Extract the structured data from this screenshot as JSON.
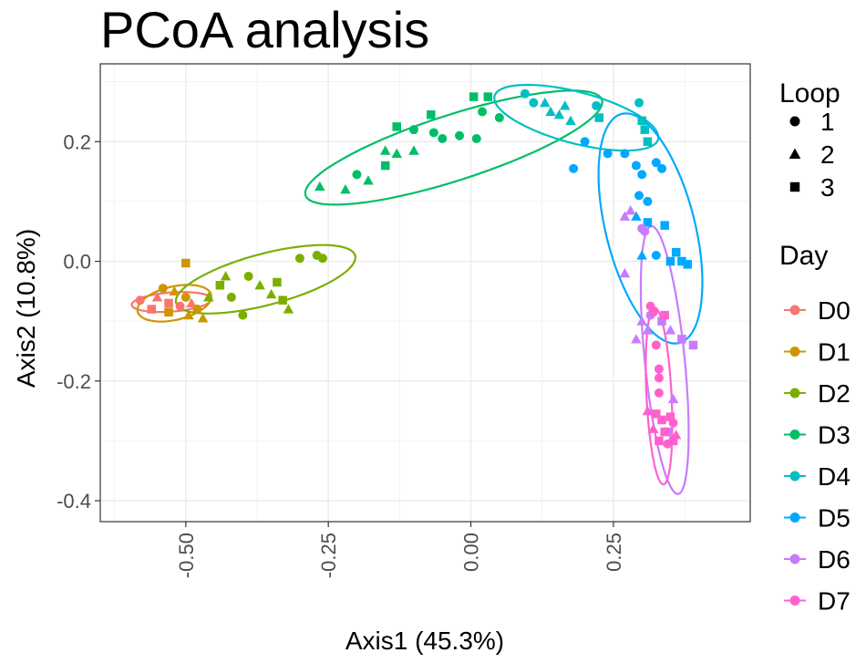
{
  "chart_data": {
    "type": "scatter",
    "title": "PCoA analysis",
    "xlabel": "Axis1 (45.3%)",
    "ylabel": "Axis2 (10.8%)",
    "xlim": [
      -0.65,
      0.49
    ],
    "ylim": [
      -0.435,
      0.33
    ],
    "xticks": [
      {
        "value": -0.5,
        "label": "-0.50"
      },
      {
        "value": -0.25,
        "label": "-0.25"
      },
      {
        "value": 0,
        "label": "0.00"
      },
      {
        "value": 0.25,
        "label": "0.25"
      }
    ],
    "yticks": [
      {
        "value": -0.4,
        "label": "-0.4"
      },
      {
        "value": -0.2,
        "label": "-0.2"
      },
      {
        "value": 0,
        "label": "0.0"
      },
      {
        "value": 0.2,
        "label": "0.2"
      }
    ],
    "grid": true,
    "legend": {
      "shape_title": "Loop",
      "shape_entries": [
        {
          "label": "1",
          "shape": "circle"
        },
        {
          "label": "2",
          "shape": "triangle"
        },
        {
          "label": "3",
          "shape": "square"
        }
      ],
      "color_title": "Day",
      "position": "right"
    },
    "groups": [
      {
        "name": "D0",
        "color": "#F8766D",
        "ellipse": {
          "cx": -0.525,
          "cy": -0.068,
          "rx": 0.07,
          "ry": 0.016,
          "angle": 4
        }
      },
      {
        "name": "D1",
        "color": "#CD9600",
        "ellipse": {
          "cx": -0.52,
          "cy": -0.07,
          "rx": 0.066,
          "ry": 0.028,
          "angle": 12
        }
      },
      {
        "name": "D2",
        "color": "#7CAE00",
        "ellipse": {
          "cx": -0.36,
          "cy": -0.03,
          "rx": 0.162,
          "ry": 0.043,
          "angle": 14
        }
      },
      {
        "name": "D3",
        "color": "#00BE67",
        "ellipse": {
          "cx": -0.03,
          "cy": 0.19,
          "rx": 0.272,
          "ry": 0.055,
          "angle": 17
        }
      },
      {
        "name": "D4",
        "color": "#00BFC4",
        "ellipse": {
          "cx": 0.185,
          "cy": 0.24,
          "rx": 0.148,
          "ry": 0.043,
          "angle": -14
        }
      },
      {
        "name": "D5",
        "color": "#00A9FF",
        "ellipse": {
          "cx": 0.315,
          "cy": 0.055,
          "rx": 0.078,
          "ry": 0.198,
          "angle": 15
        }
      },
      {
        "name": "D6",
        "color": "#C77CFF",
        "ellipse": {
          "cx": 0.34,
          "cy": -0.165,
          "rx": 0.035,
          "ry": 0.225,
          "angle": 6
        }
      },
      {
        "name": "D7",
        "color": "#FF61CC",
        "ellipse": {
          "cx": 0.33,
          "cy": -0.225,
          "rx": 0.022,
          "ry": 0.148,
          "angle": 3
        }
      }
    ],
    "points": [
      {
        "day": "D0",
        "loop": 1,
        "x": -0.58,
        "y": -0.065
      },
      {
        "day": "D0",
        "loop": 2,
        "x": -0.55,
        "y": -0.06
      },
      {
        "day": "D0",
        "loop": 3,
        "x": -0.53,
        "y": -0.07
      },
      {
        "day": "D0",
        "loop": 1,
        "x": -0.51,
        "y": -0.075
      },
      {
        "day": "D0",
        "loop": 2,
        "x": -0.49,
        "y": -0.07
      },
      {
        "day": "D0",
        "loop": 3,
        "x": -0.56,
        "y": -0.08
      },
      {
        "day": "D1",
        "loop": 3,
        "x": -0.5,
        "y": -0.003
      },
      {
        "day": "D1",
        "loop": 1,
        "x": -0.54,
        "y": -0.045
      },
      {
        "day": "D1",
        "loop": 2,
        "x": -0.52,
        "y": -0.05
      },
      {
        "day": "D1",
        "loop": 1,
        "x": -0.5,
        "y": -0.06
      },
      {
        "day": "D1",
        "loop": 3,
        "x": -0.53,
        "y": -0.085
      },
      {
        "day": "D1",
        "loop": 2,
        "x": -0.495,
        "y": -0.09
      },
      {
        "day": "D1",
        "loop": 1,
        "x": -0.48,
        "y": -0.08
      },
      {
        "day": "D1",
        "loop": 2,
        "x": -0.47,
        "y": -0.095
      },
      {
        "day": "D2",
        "loop": 1,
        "x": -0.3,
        "y": 0.005
      },
      {
        "day": "D2",
        "loop": 1,
        "x": -0.27,
        "y": 0.01
      },
      {
        "day": "D2",
        "loop": 1,
        "x": -0.26,
        "y": 0.005
      },
      {
        "day": "D2",
        "loop": 2,
        "x": -0.43,
        "y": -0.025
      },
      {
        "day": "D2",
        "loop": 3,
        "x": -0.44,
        "y": -0.04
      },
      {
        "day": "D2",
        "loop": 1,
        "x": -0.39,
        "y": -0.025
      },
      {
        "day": "D2",
        "loop": 2,
        "x": -0.37,
        "y": -0.04
      },
      {
        "day": "D2",
        "loop": 3,
        "x": -0.34,
        "y": -0.035
      },
      {
        "day": "D2",
        "loop": 2,
        "x": -0.35,
        "y": -0.055
      },
      {
        "day": "D2",
        "loop": 1,
        "x": -0.42,
        "y": -0.06
      },
      {
        "day": "D2",
        "loop": 3,
        "x": -0.33,
        "y": -0.065
      },
      {
        "day": "D2",
        "loop": 2,
        "x": -0.32,
        "y": -0.08
      },
      {
        "day": "D2",
        "loop": 1,
        "x": -0.4,
        "y": -0.09
      },
      {
        "day": "D2",
        "loop": 2,
        "x": -0.46,
        "y": -0.06
      },
      {
        "day": "D3",
        "loop": 3,
        "x": 0.005,
        "y": 0.275
      },
      {
        "day": "D3",
        "loop": 3,
        "x": 0.03,
        "y": 0.275
      },
      {
        "day": "D3",
        "loop": 1,
        "x": 0.02,
        "y": 0.25
      },
      {
        "day": "D3",
        "loop": 1,
        "x": 0.05,
        "y": 0.24
      },
      {
        "day": "D3",
        "loop": 3,
        "x": -0.07,
        "y": 0.245
      },
      {
        "day": "D3",
        "loop": 1,
        "x": -0.1,
        "y": 0.22
      },
      {
        "day": "D3",
        "loop": 1,
        "x": -0.065,
        "y": 0.215
      },
      {
        "day": "D3",
        "loop": 1,
        "x": -0.05,
        "y": 0.205
      },
      {
        "day": "D3",
        "loop": 3,
        "x": -0.13,
        "y": 0.225
      },
      {
        "day": "D3",
        "loop": 2,
        "x": -0.15,
        "y": 0.185
      },
      {
        "day": "D3",
        "loop": 2,
        "x": -0.13,
        "y": 0.18
      },
      {
        "day": "D3",
        "loop": 2,
        "x": -0.1,
        "y": 0.185
      },
      {
        "day": "D3",
        "loop": 1,
        "x": -0.02,
        "y": 0.21
      },
      {
        "day": "D3",
        "loop": 1,
        "x": 0.01,
        "y": 0.205
      },
      {
        "day": "D3",
        "loop": 1,
        "x": -0.2,
        "y": 0.145
      },
      {
        "day": "D3",
        "loop": 2,
        "x": -0.265,
        "y": 0.125
      },
      {
        "day": "D3",
        "loop": 2,
        "x": -0.22,
        "y": 0.12
      },
      {
        "day": "D3",
        "loop": 2,
        "x": -0.18,
        "y": 0.135
      },
      {
        "day": "D3",
        "loop": 3,
        "x": -0.15,
        "y": 0.16
      },
      {
        "day": "D4",
        "loop": 1,
        "x": 0.095,
        "y": 0.28
      },
      {
        "day": "D4",
        "loop": 1,
        "x": 0.11,
        "y": 0.265
      },
      {
        "day": "D4",
        "loop": 2,
        "x": 0.13,
        "y": 0.265
      },
      {
        "day": "D4",
        "loop": 2,
        "x": 0.14,
        "y": 0.25
      },
      {
        "day": "D4",
        "loop": 2,
        "x": 0.165,
        "y": 0.26
      },
      {
        "day": "D4",
        "loop": 2,
        "x": 0.155,
        "y": 0.245
      },
      {
        "day": "D4",
        "loop": 1,
        "x": 0.22,
        "y": 0.26
      },
      {
        "day": "D4",
        "loop": 3,
        "x": 0.225,
        "y": 0.24
      },
      {
        "day": "D4",
        "loop": 2,
        "x": 0.175,
        "y": 0.235
      },
      {
        "day": "D4",
        "loop": 3,
        "x": 0.3,
        "y": 0.235
      },
      {
        "day": "D4",
        "loop": 3,
        "x": 0.305,
        "y": 0.22
      },
      {
        "day": "D4",
        "loop": 3,
        "x": 0.31,
        "y": 0.2
      },
      {
        "day": "D4",
        "loop": 1,
        "x": 0.295,
        "y": 0.265
      },
      {
        "day": "D5",
        "loop": 1,
        "x": 0.2,
        "y": 0.2
      },
      {
        "day": "D5",
        "loop": 1,
        "x": 0.24,
        "y": 0.18
      },
      {
        "day": "D5",
        "loop": 1,
        "x": 0.27,
        "y": 0.18
      },
      {
        "day": "D5",
        "loop": 1,
        "x": 0.325,
        "y": 0.165
      },
      {
        "day": "D5",
        "loop": 1,
        "x": 0.18,
        "y": 0.155
      },
      {
        "day": "D5",
        "loop": 1,
        "x": 0.29,
        "y": 0.16
      },
      {
        "day": "D5",
        "loop": 1,
        "x": 0.3,
        "y": 0.145
      },
      {
        "day": "D5",
        "loop": 1,
        "x": 0.335,
        "y": 0.155
      },
      {
        "day": "D5",
        "loop": 1,
        "x": 0.295,
        "y": 0.11
      },
      {
        "day": "D5",
        "loop": 1,
        "x": 0.31,
        "y": 0.1
      },
      {
        "day": "D5",
        "loop": 2,
        "x": 0.29,
        "y": 0.075
      },
      {
        "day": "D5",
        "loop": 3,
        "x": 0.31,
        "y": 0.065
      },
      {
        "day": "D5",
        "loop": 3,
        "x": 0.34,
        "y": 0.06
      },
      {
        "day": "D5",
        "loop": 2,
        "x": 0.3,
        "y": 0.01
      },
      {
        "day": "D5",
        "loop": 3,
        "x": 0.36,
        "y": 0.015
      },
      {
        "day": "D5",
        "loop": 3,
        "x": 0.37,
        "y": 0.0
      },
      {
        "day": "D5",
        "loop": 3,
        "x": 0.38,
        "y": -0.005
      },
      {
        "day": "D5",
        "loop": 3,
        "x": 0.35,
        "y": 0.0
      },
      {
        "day": "D5",
        "loop": 1,
        "x": 0.325,
        "y": 0.01
      },
      {
        "day": "D6",
        "loop": 2,
        "x": 0.27,
        "y": 0.075
      },
      {
        "day": "D6",
        "loop": 2,
        "x": 0.28,
        "y": 0.085
      },
      {
        "day": "D6",
        "loop": 1,
        "x": 0.3,
        "y": 0.055
      },
      {
        "day": "D6",
        "loop": 1,
        "x": 0.305,
        "y": 0.05
      },
      {
        "day": "D6",
        "loop": 2,
        "x": 0.27,
        "y": -0.02
      },
      {
        "day": "D6",
        "loop": 2,
        "x": 0.3,
        "y": -0.1
      },
      {
        "day": "D6",
        "loop": 2,
        "x": 0.31,
        "y": -0.115
      },
      {
        "day": "D6",
        "loop": 3,
        "x": 0.335,
        "y": -0.1
      },
      {
        "day": "D6",
        "loop": 2,
        "x": 0.35,
        "y": -0.115
      },
      {
        "day": "D6",
        "loop": 3,
        "x": 0.37,
        "y": -0.13
      },
      {
        "day": "D6",
        "loop": 3,
        "x": 0.39,
        "y": -0.14
      },
      {
        "day": "D6",
        "loop": 2,
        "x": 0.29,
        "y": -0.13
      },
      {
        "day": "D6",
        "loop": 1,
        "x": 0.315,
        "y": -0.09
      },
      {
        "day": "D6",
        "loop": 2,
        "x": 0.355,
        "y": -0.23
      },
      {
        "day": "D6",
        "loop": 3,
        "x": 0.345,
        "y": -0.285
      },
      {
        "day": "D7",
        "loop": 1,
        "x": 0.315,
        "y": -0.075
      },
      {
        "day": "D7",
        "loop": 1,
        "x": 0.32,
        "y": -0.085
      },
      {
        "day": "D7",
        "loop": 3,
        "x": 0.34,
        "y": -0.09
      },
      {
        "day": "D7",
        "loop": 1,
        "x": 0.325,
        "y": -0.14
      },
      {
        "day": "D7",
        "loop": 1,
        "x": 0.33,
        "y": -0.18
      },
      {
        "day": "D7",
        "loop": 1,
        "x": 0.33,
        "y": -0.195
      },
      {
        "day": "D7",
        "loop": 1,
        "x": 0.33,
        "y": -0.22
      },
      {
        "day": "D7",
        "loop": 2,
        "x": 0.31,
        "y": -0.25
      },
      {
        "day": "D7",
        "loop": 3,
        "x": 0.325,
        "y": -0.255
      },
      {
        "day": "D7",
        "loop": 3,
        "x": 0.335,
        "y": -0.265
      },
      {
        "day": "D7",
        "loop": 3,
        "x": 0.35,
        "y": -0.26
      },
      {
        "day": "D7",
        "loop": 2,
        "x": 0.32,
        "y": -0.28
      },
      {
        "day": "D7",
        "loop": 3,
        "x": 0.34,
        "y": -0.285
      },
      {
        "day": "D7",
        "loop": 1,
        "x": 0.355,
        "y": -0.27
      },
      {
        "day": "D7",
        "loop": 3,
        "x": 0.33,
        "y": -0.3
      },
      {
        "day": "D7",
        "loop": 1,
        "x": 0.345,
        "y": -0.305
      },
      {
        "day": "D7",
        "loop": 2,
        "x": 0.36,
        "y": -0.29
      },
      {
        "day": "D7",
        "loop": 3,
        "x": 0.355,
        "y": -0.3
      }
    ]
  }
}
